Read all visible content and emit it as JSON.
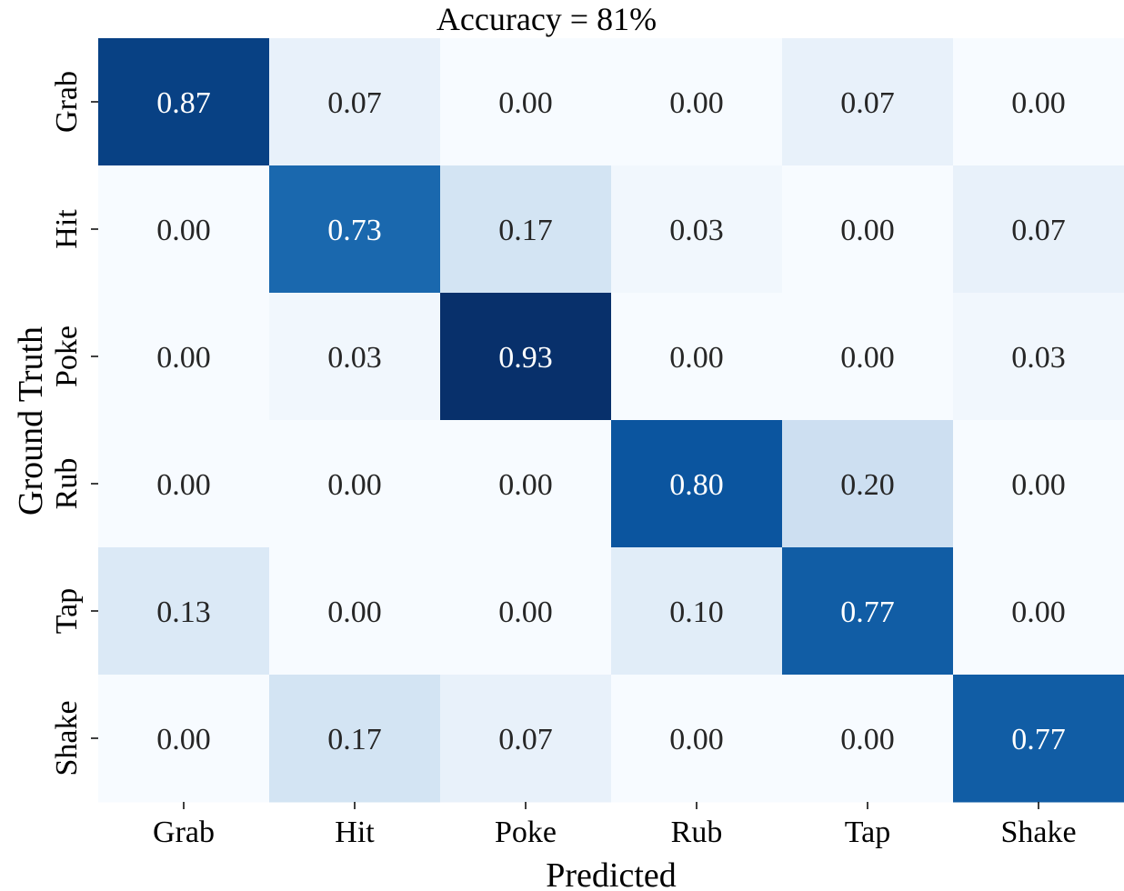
{
  "chart_data": {
    "type": "heatmap",
    "title": "Accuracy = 81%",
    "xlabel": "Predicted",
    "ylabel": "Ground Truth",
    "x_categories": [
      "Grab",
      "Hit",
      "Poke",
      "Rub",
      "Tap",
      "Shake"
    ],
    "y_categories": [
      "Grab",
      "Hit",
      "Poke",
      "Rub",
      "Tap",
      "Shake"
    ],
    "values": [
      [
        0.87,
        0.07,
        0.0,
        0.0,
        0.07,
        0.0
      ],
      [
        0.0,
        0.73,
        0.17,
        0.03,
        0.0,
        0.07
      ],
      [
        0.0,
        0.03,
        0.93,
        0.0,
        0.0,
        0.03
      ],
      [
        0.0,
        0.0,
        0.0,
        0.8,
        0.2,
        0.0
      ],
      [
        0.13,
        0.0,
        0.0,
        0.1,
        0.77,
        0.0
      ],
      [
        0.0,
        0.17,
        0.07,
        0.0,
        0.0,
        0.77
      ]
    ],
    "value_range": [
      0,
      0.93
    ],
    "colormap": "Blues",
    "colorbar": false,
    "grid": false
  }
}
